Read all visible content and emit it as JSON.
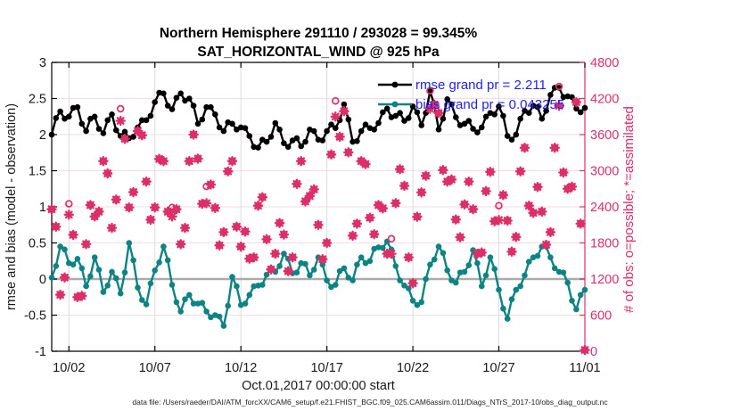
{
  "title": {
    "line1": "Northern Hemisphere 291110 / 293028 = 99.345%",
    "line2": "SAT_HORIZONTAL_WIND @ 925 hPa"
  },
  "axes": {
    "ylabel_left": "rmse and bias (model - observation)",
    "ylabel_right": "# of obs: o=possible; *=assimilated",
    "xlabel": "Oct.01,2017 00:00:00 start"
  },
  "legend": {
    "rmse_label": "rmse grand pr = 2.211",
    "bias_label": "bias grand pr = 0.043255"
  },
  "caption": "data file: /Users/raeder/DAI/ATM_forcXX/CAM6_setup/f.e21.FHIST_BGC.f09_025.CAM6assim.011/Diags_NTrS_2017-10/obs_diag_output.nc",
  "colors": {
    "rmse": "#000000",
    "bias": "#0d8383",
    "obs": "#de2e67",
    "legend_text": "#2222ee",
    "grid_h": "#f5dbe0",
    "grid_v": "#dbdbdb",
    "zero_line": "#ababab",
    "tick_text": "#1a1a1a"
  },
  "chart_data": {
    "type": "line",
    "x_unit": "day of month (Oct 2017, start Oct.01 00:00:00)",
    "x_ticks": [
      2,
      7,
      12,
      17,
      22,
      27,
      32
    ],
    "x_tick_labels": [
      "10/02",
      "10/07",
      "10/12",
      "10/17",
      "10/22",
      "10/27",
      "11/01"
    ],
    "ylim_left": [
      -1,
      3
    ],
    "y_ticks_left": [
      -1,
      -0.5,
      0,
      0.5,
      1,
      1.5,
      2,
      2.5,
      3
    ],
    "ylim_right": [
      0,
      4800
    ],
    "y_ticks_right": [
      0,
      600,
      1200,
      1800,
      2400,
      3000,
      3600,
      4200,
      4800
    ],
    "grid": true,
    "legend_position": "top-right-inside",
    "x_model": [
      1,
      1.25,
      1.5,
      1.75,
      2,
      2.25,
      2.5,
      2.75,
      3,
      3.25,
      3.5,
      3.75,
      4,
      4.25,
      4.5,
      4.75,
      5,
      5.25,
      5.5,
      5.75,
      6,
      6.25,
      6.5,
      6.75,
      7,
      7.25,
      7.5,
      7.75,
      8,
      8.25,
      8.5,
      8.75,
      9,
      9.25,
      9.5,
      9.75,
      10,
      10.25,
      10.5,
      10.75,
      11,
      11.25,
      11.5,
      11.75,
      12,
      12.25,
      12.5,
      12.75,
      13,
      13.25,
      13.5,
      13.75,
      14,
      14.25,
      14.5,
      14.75,
      15,
      15.25,
      15.5,
      15.75,
      16,
      16.25,
      16.5,
      16.75,
      17,
      17.25,
      17.5,
      17.75,
      18,
      18.25,
      18.5,
      18.75,
      19,
      19.25,
      19.5,
      19.75,
      20,
      20.25,
      20.5,
      20.75,
      21,
      21.25,
      21.5,
      21.75,
      22,
      22.25,
      22.5,
      22.75,
      23,
      23.25,
      23.5,
      23.75,
      24,
      24.25,
      24.5,
      24.75,
      25,
      25.25,
      25.5,
      25.75,
      26,
      26.25,
      26.5,
      26.75,
      27,
      27.25,
      27.5,
      27.75,
      28,
      28.25,
      28.5,
      28.75,
      29,
      29.25,
      29.5,
      29.75,
      30,
      30.25,
      30.5,
      30.75,
      31,
      31.25,
      31.5,
      31.75,
      32
    ],
    "series": [
      {
        "name": "rmse",
        "grand_value": 2.211,
        "axis": "left",
        "x_ref": "x_model",
        "values": [
          2.0,
          2.23,
          2.32,
          2.22,
          2.25,
          2.37,
          2.38,
          2.15,
          2.05,
          2.22,
          2.25,
          2.08,
          2.02,
          2.2,
          2.28,
          2.06,
          1.98,
          2.04,
          1.95,
          1.97,
          2.1,
          2.2,
          2.2,
          2.26,
          2.45,
          2.58,
          2.57,
          2.4,
          2.35,
          2.51,
          2.57,
          2.47,
          2.5,
          2.4,
          2.15,
          2.21,
          2.38,
          2.38,
          2.28,
          2.1,
          2.05,
          2.17,
          2.15,
          2.07,
          2.1,
          2.09,
          1.98,
          1.83,
          1.82,
          1.93,
          1.9,
          1.97,
          2.16,
          2.07,
          1.88,
          1.83,
          1.92,
          1.95,
          1.84,
          1.9,
          2.07,
          2.05,
          1.93,
          1.92,
          2.05,
          2.14,
          2.09,
          2.2,
          2.42,
          2.21,
          1.9,
          1.91,
          2.05,
          2.14,
          2.09,
          2.07,
          2.16,
          2.31,
          2.36,
          2.24,
          2.26,
          2.3,
          2.19,
          2.23,
          2.39,
          2.31,
          2.13,
          2.3,
          2.6,
          2.41,
          2.07,
          2.22,
          2.49,
          2.42,
          2.24,
          2.13,
          2.15,
          2.19,
          2.08,
          2.03,
          2.1,
          2.25,
          2.3,
          2.28,
          2.39,
          2.26,
          1.98,
          1.93,
          2.0,
          2.22,
          2.33,
          2.3,
          2.4,
          2.38,
          2.22,
          2.33,
          2.55,
          2.65,
          2.65,
          2.52,
          2.53,
          2.52,
          2.36,
          2.31,
          2.37
        ]
      },
      {
        "name": "bias",
        "grand_value": 0.043255,
        "axis": "left",
        "x_ref": "x_model",
        "values": [
          0.02,
          0.18,
          0.45,
          0.41,
          0.22,
          0.2,
          0.28,
          0.15,
          -0.1,
          0.04,
          0.3,
          0.13,
          -0.18,
          -0.09,
          0.1,
          0.01,
          -0.2,
          0.09,
          0.5,
          0.26,
          -0.12,
          -0.29,
          -0.35,
          -0.06,
          0.12,
          0.23,
          0.45,
          0.26,
          -0.08,
          -0.32,
          -0.45,
          -0.28,
          -0.22,
          -0.34,
          -0.34,
          -0.33,
          -0.45,
          -0.53,
          -0.5,
          -0.52,
          -0.65,
          -0.37,
          0.03,
          -0.1,
          -0.36,
          -0.34,
          -0.22,
          -0.1,
          -0.09,
          -0.08,
          0.06,
          0.15,
          0.1,
          0.18,
          0.35,
          0.28,
          0.08,
          0.09,
          0.22,
          0.21,
          0.05,
          0.13,
          0.3,
          0.2,
          -0.02,
          -0.11,
          -0.08,
          0.11,
          0.15,
          0.02,
          -0.02,
          0.2,
          0.3,
          0.22,
          0.25,
          0.42,
          0.44,
          0.43,
          0.52,
          0.41,
          0.18,
          -0.02,
          -0.09,
          -0.13,
          -0.3,
          -0.36,
          -0.32,
          0.0,
          0.2,
          0.27,
          0.45,
          0.36,
          0.12,
          -0.02,
          -0.05,
          0.09,
          0.1,
          0.19,
          0.4,
          0.22,
          -0.1,
          0.05,
          0.3,
          0.14,
          -0.15,
          -0.41,
          -0.55,
          -0.28,
          -0.15,
          -0.1,
          0.05,
          0.24,
          0.3,
          0.32,
          0.45,
          0.45,
          0.3,
          0.15,
          0.1,
          0.09,
          -0.05,
          -0.3,
          -0.42,
          -0.22,
          -0.15
        ]
      },
      {
        "name": "assimilated",
        "axis": "right",
        "marker": "asterisk",
        "x_ref": "x_model",
        "values": [
          2360,
          2070,
          940,
          1225,
          2270,
          1935,
          900,
          920,
          1780,
          2430,
          2240,
          2320,
          3160,
          2955,
          2050,
          2520,
          3830,
          3530,
          2390,
          2645,
          3660,
          3590,
          2820,
          2185,
          2390,
          3195,
          3160,
          2320,
          2240,
          2360,
          1780,
          2050,
          3160,
          3600,
          3200,
          2450,
          2460,
          2770,
          2380,
          1760,
          1980,
          2990,
          3160,
          2070,
          1740,
          1990,
          1540,
          1560,
          2420,
          2560,
          1860,
          1360,
          1620,
          2130,
          1940,
          1330,
          1560,
          2780,
          3160,
          2490,
          2580,
          2690,
          2100,
          1530,
          1800,
          3270,
          3900,
          3565,
          3990,
          3305,
          1920,
          2120,
          3160,
          3110,
          2220,
          1945,
          2430,
          2375,
          1620,
          1620,
          2460,
          3025,
          2750,
          1560,
          1130,
          2235,
          2640,
          2915,
          4030,
          4100,
          3960,
          3010,
          2820,
          2855,
          2190,
          1895,
          2440,
          2820,
          2360,
          1620,
          1640,
          2660,
          2980,
          2160,
          2180,
          2595,
          2170,
          1655,
          1900,
          2990,
          3380,
          2420,
          2300,
          2730,
          2320,
          1770,
          1980,
          3380,
          4080,
          2970,
          2700,
          2735,
          4140,
          2120,
          20
        ]
      },
      {
        "name": "possible",
        "axis": "right",
        "marker": "circle",
        "x_ref": "x_model",
        "values": [
          2360,
          2070,
          940,
          1225,
          2450,
          1935,
          900,
          920,
          1780,
          2430,
          2240,
          2320,
          3160,
          2955,
          2050,
          2520,
          4030,
          3530,
          2390,
          2645,
          3660,
          3590,
          2820,
          2185,
          2390,
          3195,
          3160,
          2320,
          2390,
          2360,
          1780,
          2050,
          3160,
          3600,
          3200,
          2450,
          2740,
          2770,
          2380,
          1760,
          1980,
          2990,
          3160,
          2070,
          1740,
          1990,
          1540,
          1560,
          2420,
          2560,
          1860,
          1360,
          1620,
          2130,
          1940,
          1330,
          1560,
          2780,
          3160,
          2490,
          2580,
          2690,
          2100,
          1530,
          1800,
          3270,
          4160,
          3565,
          3990,
          3305,
          1920,
          2120,
          3160,
          3110,
          2220,
          1945,
          2430,
          2375,
          1620,
          1870,
          2460,
          3025,
          2750,
          1560,
          1130,
          2235,
          2640,
          2915,
          4330,
          4100,
          3960,
          3010,
          2820,
          2855,
          2190,
          1895,
          2440,
          2820,
          2360,
          1620,
          1640,
          2660,
          2980,
          2160,
          2420,
          2595,
          2170,
          1655,
          1900,
          2990,
          3380,
          2420,
          2300,
          2730,
          2320,
          1770,
          1980,
          3380,
          4400,
          2970,
          2700,
          2735,
          4140,
          2120,
          20
        ]
      }
    ]
  }
}
